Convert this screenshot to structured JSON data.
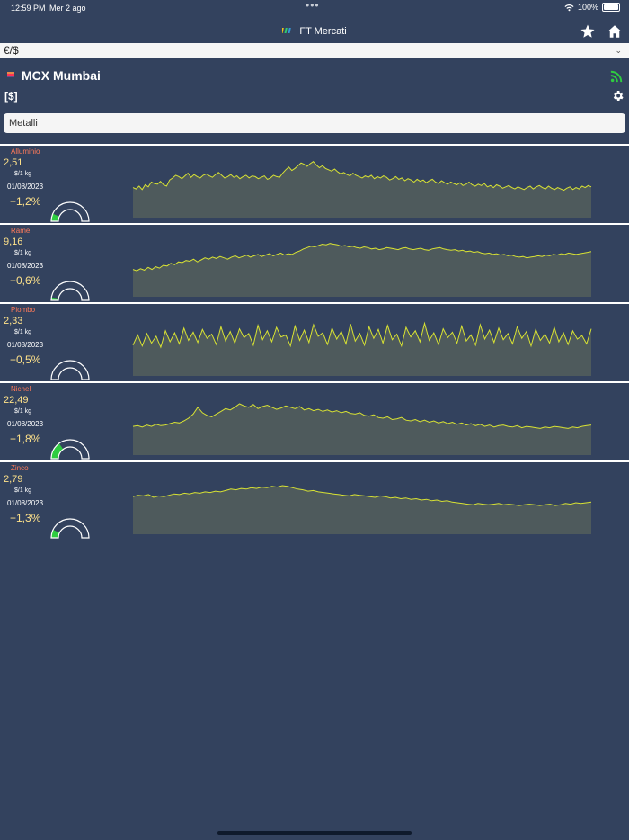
{
  "status_bar": {
    "time": "12:59 PM",
    "date": "Mer 2 ago",
    "battery": "100%"
  },
  "nav": {
    "title": "FT Mercati",
    "favorites_icon": "star-icon",
    "home_icon": "home-icon"
  },
  "currency_select": {
    "value": "€/$"
  },
  "market": {
    "name": "MCX Mumbai",
    "currency": "[$]"
  },
  "category_input": {
    "value": "Metalli"
  },
  "colors": {
    "background": "#33425e",
    "name": "#ff7a59",
    "value": "#ffe28a",
    "spark_line": "#d8e233",
    "spark_fill": "#4e5a5c",
    "gauge_fill": "#2ecc40",
    "rss": "#2ecc40"
  },
  "commodities": [
    {
      "name": "Alluminio",
      "price": "2,51",
      "unit": "$/1 kg",
      "date": "01/08/2023",
      "change": "+1,2%",
      "gauge": 0.13,
      "history": [
        44,
        42,
        46,
        41,
        48,
        45,
        52,
        50,
        49,
        53,
        48,
        46,
        55,
        58,
        62,
        60,
        57,
        61,
        65,
        59,
        63,
        60,
        58,
        62,
        64,
        61,
        59,
        63,
        66,
        62,
        58,
        60,
        63,
        59,
        61,
        57,
        60,
        62,
        58,
        61,
        60,
        57,
        59,
        61,
        56,
        58,
        62,
        60,
        59,
        65,
        70,
        74,
        69,
        72,
        76,
        80,
        78,
        75,
        79,
        82,
        77,
        73,
        76,
        72,
        70,
        68,
        71,
        67,
        64,
        66,
        63,
        61,
        65,
        62,
        60,
        58,
        61,
        59,
        62,
        57,
        60,
        58,
        61,
        59,
        55,
        57,
        60,
        56,
        58,
        54,
        57,
        55,
        52,
        56,
        53,
        55,
        51,
        54,
        56,
        52,
        50,
        54,
        51,
        49,
        52,
        50,
        48,
        51,
        47,
        49,
        52,
        48,
        46,
        49,
        47,
        50,
        45,
        47,
        44,
        48,
        46,
        43,
        45,
        47,
        44,
        42,
        45,
        43,
        41,
        44,
        46,
        42,
        45,
        47,
        44,
        42,
        46,
        43,
        41,
        44,
        42,
        40,
        43,
        45,
        41,
        44,
        42,
        46,
        44,
        47,
        45
      ]
    },
    {
      "name": "Rame",
      "price": "9,16",
      "unit": "$/1 kg",
      "date": "01/08/2023",
      "change": "+0,6%",
      "gauge": 0.05,
      "history": [
        40,
        38,
        41,
        39,
        43,
        40,
        44,
        42,
        46,
        45,
        49,
        47,
        51,
        50,
        53,
        52,
        55,
        51,
        54,
        57,
        55,
        58,
        56,
        59,
        57,
        55,
        58,
        60,
        57,
        59,
        61,
        58,
        60,
        62,
        59,
        61,
        63,
        60,
        62,
        64,
        61,
        63,
        62,
        65,
        67,
        70,
        72,
        74,
        73,
        75,
        77,
        76,
        78,
        77,
        76,
        74,
        75,
        73,
        74,
        72,
        71,
        73,
        72,
        70,
        71,
        69,
        70,
        72,
        71,
        70,
        69,
        71,
        72,
        70,
        69,
        70,
        71,
        69,
        68,
        70,
        71,
        72,
        70,
        69,
        68,
        69,
        67,
        68,
        66,
        67,
        65,
        66,
        64,
        63,
        64,
        62,
        63,
        61,
        62,
        60,
        61,
        59,
        58,
        59,
        57,
        58,
        59,
        60,
        59,
        61,
        60,
        62,
        61,
        63,
        62,
        64,
        63,
        62,
        63,
        64,
        65,
        66
      ]
    },
    {
      "name": "Piombo",
      "price": "2,33",
      "unit": "$/1 kg",
      "date": "01/08/2023",
      "change": "+0,5%",
      "gauge": 0.0,
      "history": [
        45,
        60,
        44,
        62,
        48,
        58,
        42,
        66,
        50,
        63,
        47,
        70,
        52,
        64,
        49,
        68,
        55,
        61,
        46,
        72,
        51,
        65,
        48,
        69,
        56,
        62,
        45,
        74,
        53,
        66,
        50,
        71,
        57,
        60,
        44,
        73,
        52,
        67,
        49,
        75,
        58,
        63,
        46,
        70,
        54,
        65,
        47,
        76,
        51,
        62,
        45,
        72,
        55,
        68,
        48,
        74,
        53,
        61,
        44,
        71,
        57,
        66,
        50,
        77,
        52,
        63,
        46,
        69,
        56,
        64,
        48,
        73,
        51,
        60,
        45,
        75,
        54,
        67,
        49,
        70,
        53,
        62,
        47,
        72,
        55,
        65,
        44,
        68,
        52,
        61,
        48,
        71,
        50,
        63,
        46,
        66,
        54,
        59,
        47,
        69
      ]
    },
    {
      "name": "Nichel",
      "price": "22,49",
      "unit": "$/1 kg",
      "date": "01/08/2023",
      "change": "+1,8%",
      "gauge": 0.3,
      "history": [
        42,
        43,
        41,
        44,
        42,
        45,
        43,
        44,
        46,
        48,
        47,
        50,
        54,
        60,
        70,
        62,
        58,
        56,
        60,
        64,
        68,
        66,
        70,
        75,
        72,
        70,
        74,
        68,
        71,
        73,
        70,
        67,
        69,
        72,
        70,
        68,
        71,
        66,
        68,
        65,
        67,
        64,
        66,
        63,
        65,
        62,
        64,
        61,
        60,
        62,
        58,
        57,
        59,
        55,
        54,
        56,
        52,
        53,
        55,
        51,
        50,
        52,
        49,
        51,
        48,
        50,
        47,
        49,
        46,
        48,
        45,
        47,
        44,
        46,
        43,
        45,
        42,
        44,
        41,
        43,
        44,
        42,
        41,
        43,
        40,
        42,
        41,
        40,
        39,
        41,
        40,
        42,
        41,
        40,
        39,
        41,
        40,
        42,
        43,
        44
      ]
    },
    {
      "name": "Zinco",
      "price": "2,79",
      "unit": "$/1 kg",
      "date": "01/08/2023",
      "change": "+1,3%",
      "gauge": 0.14,
      "history": [
        55,
        57,
        56,
        58,
        54,
        56,
        55,
        57,
        59,
        58,
        60,
        59,
        61,
        60,
        62,
        61,
        63,
        62,
        64,
        66,
        65,
        67,
        66,
        68,
        67,
        69,
        68,
        70,
        69,
        71,
        70,
        68,
        66,
        65,
        63,
        64,
        62,
        61,
        60,
        59,
        58,
        57,
        56,
        58,
        57,
        56,
        55,
        54,
        56,
        55,
        53,
        54,
        52,
        53,
        51,
        52,
        50,
        51,
        49,
        50,
        48,
        49,
        47,
        46,
        45,
        44,
        43,
        45,
        44,
        43,
        44,
        45,
        43,
        44,
        43,
        42,
        43,
        44,
        43,
        42,
        43,
        44,
        42,
        43,
        45,
        44,
        46,
        45,
        46,
        47
      ]
    }
  ]
}
